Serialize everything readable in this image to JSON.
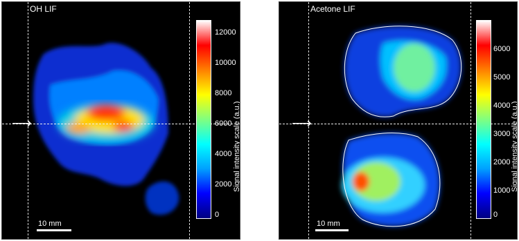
{
  "panels": [
    {
      "title": "OH LIF",
      "colorbar_ticks": [
        "12000",
        "10000",
        "8000",
        "6000",
        "4000",
        "2000",
        "0"
      ],
      "colorbar_label": "Signal intensity scale (a.u.)",
      "scale_bar_label": "10 mm"
    },
    {
      "title": "Acetone LIF",
      "colorbar_ticks": [
        "6000",
        "5000",
        "4000",
        "3000",
        "2000",
        "1000",
        "0"
      ],
      "colorbar_label": "Signal intensity scale (a.u.)",
      "scale_bar_label": "10 mm"
    }
  ],
  "colormap": [
    "#000080",
    "#0000ff",
    "#00a0ff",
    "#00ffff",
    "#80ff80",
    "#ffff00",
    "#ff8000",
    "#ff0000",
    "#ffffff"
  ]
}
